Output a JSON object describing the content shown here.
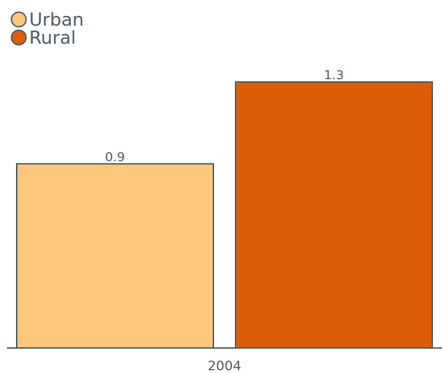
{
  "chart_data": {
    "type": "bar",
    "categories": [
      "2004"
    ],
    "series": [
      {
        "name": "Urban",
        "values": [
          0.9
        ],
        "color": "#fcc77b"
      },
      {
        "name": "Rural",
        "values": [
          1.3
        ],
        "color": "#dd5d08"
      }
    ],
    "ylim": [
      0,
      1.3
    ],
    "grid": false,
    "legend_position": "top-left",
    "colors": {
      "stroke": "#4b5b6b",
      "text": "#4b5b6b"
    }
  }
}
